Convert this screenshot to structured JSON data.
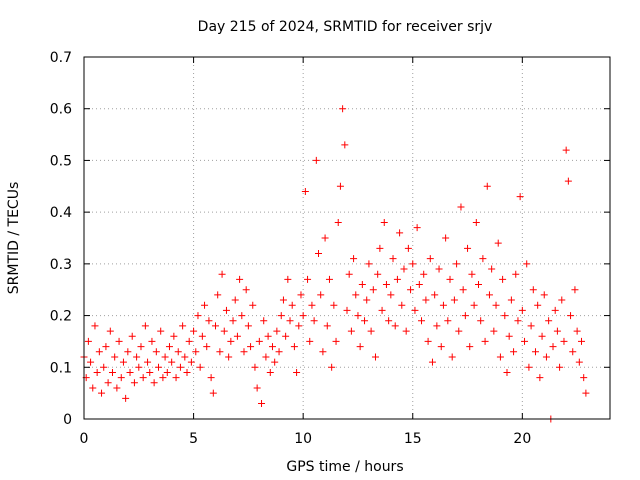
{
  "chart_data": {
    "type": "scatter",
    "title": "Day 215 of 2024, SRMTID for receiver srjv",
    "xlabel": "GPS time / hours",
    "ylabel": "SRMTID / TECUs",
    "xlim": [
      0,
      24
    ],
    "ylim": [
      0,
      0.7
    ],
    "x_ticks": [
      0,
      5,
      10,
      15,
      20
    ],
    "x_tick_labels": [
      "0",
      "5",
      "10",
      "15",
      "20"
    ],
    "y_ticks": [
      0,
      0.1,
      0.2,
      0.3,
      0.4,
      0.5,
      0.6,
      0.7
    ],
    "y_tick_labels": [
      "0",
      "0.1",
      "0.2",
      "0.3",
      "0.4",
      "0.5",
      "0.6",
      "0.7"
    ],
    "grid": true,
    "marker": "plus",
    "series": [
      {
        "name": "srjv",
        "color": "#ff0000",
        "points": [
          [
            0.0,
            0.12
          ],
          [
            0.1,
            0.08
          ],
          [
            0.2,
            0.15
          ],
          [
            0.3,
            0.11
          ],
          [
            0.4,
            0.06
          ],
          [
            0.5,
            0.18
          ],
          [
            0.6,
            0.09
          ],
          [
            0.7,
            0.13
          ],
          [
            0.8,
            0.05
          ],
          [
            0.9,
            0.1
          ],
          [
            1.0,
            0.14
          ],
          [
            1.1,
            0.07
          ],
          [
            1.2,
            0.17
          ],
          [
            1.3,
            0.09
          ],
          [
            1.4,
            0.12
          ],
          [
            1.5,
            0.06
          ],
          [
            1.6,
            0.15
          ],
          [
            1.7,
            0.08
          ],
          [
            1.8,
            0.11
          ],
          [
            1.9,
            0.04
          ],
          [
            2.0,
            0.13
          ],
          [
            2.1,
            0.09
          ],
          [
            2.2,
            0.16
          ],
          [
            2.3,
            0.07
          ],
          [
            2.4,
            0.12
          ],
          [
            2.5,
            0.1
          ],
          [
            2.6,
            0.14
          ],
          [
            2.7,
            0.08
          ],
          [
            2.8,
            0.18
          ],
          [
            2.9,
            0.11
          ],
          [
            3.0,
            0.09
          ],
          [
            3.1,
            0.15
          ],
          [
            3.2,
            0.07
          ],
          [
            3.3,
            0.13
          ],
          [
            3.4,
            0.1
          ],
          [
            3.5,
            0.17
          ],
          [
            3.6,
            0.08
          ],
          [
            3.7,
            0.12
          ],
          [
            3.8,
            0.09
          ],
          [
            3.9,
            0.14
          ],
          [
            4.0,
            0.11
          ],
          [
            4.1,
            0.16
          ],
          [
            4.2,
            0.08
          ],
          [
            4.3,
            0.13
          ],
          [
            4.4,
            0.1
          ],
          [
            4.5,
            0.18
          ],
          [
            4.6,
            0.12
          ],
          [
            4.7,
            0.09
          ],
          [
            4.8,
            0.15
          ],
          [
            4.9,
            0.11
          ],
          [
            5.0,
            0.17
          ],
          [
            5.1,
            0.13
          ],
          [
            5.2,
            0.2
          ],
          [
            5.3,
            0.1
          ],
          [
            5.4,
            0.16
          ],
          [
            5.5,
            0.22
          ],
          [
            5.6,
            0.14
          ],
          [
            5.7,
            0.19
          ],
          [
            5.8,
            0.08
          ],
          [
            5.9,
            0.05
          ],
          [
            6.0,
            0.18
          ],
          [
            6.1,
            0.24
          ],
          [
            6.2,
            0.13
          ],
          [
            6.3,
            0.28
          ],
          [
            6.4,
            0.17
          ],
          [
            6.5,
            0.21
          ],
          [
            6.6,
            0.12
          ],
          [
            6.7,
            0.15
          ],
          [
            6.8,
            0.19
          ],
          [
            6.9,
            0.23
          ],
          [
            7.0,
            0.16
          ],
          [
            7.1,
            0.27
          ],
          [
            7.2,
            0.2
          ],
          [
            7.3,
            0.13
          ],
          [
            7.4,
            0.25
          ],
          [
            7.5,
            0.18
          ],
          [
            7.6,
            0.14
          ],
          [
            7.7,
            0.22
          ],
          [
            7.8,
            0.1
          ],
          [
            7.9,
            0.06
          ],
          [
            8.0,
            0.15
          ],
          [
            8.1,
            0.03
          ],
          [
            8.2,
            0.19
          ],
          [
            8.3,
            0.12
          ],
          [
            8.4,
            0.16
          ],
          [
            8.5,
            0.09
          ],
          [
            8.6,
            0.14
          ],
          [
            8.7,
            0.11
          ],
          [
            8.8,
            0.17
          ],
          [
            8.9,
            0.13
          ],
          [
            9.0,
            0.2
          ],
          [
            9.1,
            0.23
          ],
          [
            9.2,
            0.16
          ],
          [
            9.3,
            0.27
          ],
          [
            9.4,
            0.19
          ],
          [
            9.5,
            0.22
          ],
          [
            9.6,
            0.14
          ],
          [
            9.7,
            0.09
          ],
          [
            9.8,
            0.18
          ],
          [
            9.9,
            0.24
          ],
          [
            10.0,
            0.2
          ],
          [
            10.1,
            0.44
          ],
          [
            10.2,
            0.27
          ],
          [
            10.3,
            0.15
          ],
          [
            10.4,
            0.22
          ],
          [
            10.5,
            0.19
          ],
          [
            10.6,
            0.5
          ],
          [
            10.7,
            0.32
          ],
          [
            10.8,
            0.24
          ],
          [
            10.9,
            0.13
          ],
          [
            11.0,
            0.35
          ],
          [
            11.1,
            0.18
          ],
          [
            11.2,
            0.27
          ],
          [
            11.3,
            0.1
          ],
          [
            11.4,
            0.22
          ],
          [
            11.5,
            0.15
          ],
          [
            11.6,
            0.38
          ],
          [
            11.7,
            0.45
          ],
          [
            11.8,
            0.6
          ],
          [
            11.9,
            0.53
          ],
          [
            12.0,
            0.21
          ],
          [
            12.1,
            0.28
          ],
          [
            12.2,
            0.17
          ],
          [
            12.3,
            0.31
          ],
          [
            12.4,
            0.24
          ],
          [
            12.5,
            0.2
          ],
          [
            12.6,
            0.14
          ],
          [
            12.7,
            0.26
          ],
          [
            12.8,
            0.19
          ],
          [
            12.9,
            0.23
          ],
          [
            13.0,
            0.3
          ],
          [
            13.1,
            0.17
          ],
          [
            13.2,
            0.25
          ],
          [
            13.3,
            0.12
          ],
          [
            13.4,
            0.28
          ],
          [
            13.5,
            0.33
          ],
          [
            13.6,
            0.21
          ],
          [
            13.7,
            0.38
          ],
          [
            13.8,
            0.26
          ],
          [
            13.9,
            0.19
          ],
          [
            14.0,
            0.24
          ],
          [
            14.1,
            0.31
          ],
          [
            14.2,
            0.18
          ],
          [
            14.3,
            0.27
          ],
          [
            14.4,
            0.36
          ],
          [
            14.5,
            0.22
          ],
          [
            14.6,
            0.29
          ],
          [
            14.7,
            0.17
          ],
          [
            14.8,
            0.33
          ],
          [
            14.9,
            0.25
          ],
          [
            15.0,
            0.3
          ],
          [
            15.1,
            0.21
          ],
          [
            15.2,
            0.37
          ],
          [
            15.3,
            0.26
          ],
          [
            15.4,
            0.19
          ],
          [
            15.5,
            0.28
          ],
          [
            15.6,
            0.23
          ],
          [
            15.7,
            0.15
          ],
          [
            15.8,
            0.31
          ],
          [
            15.9,
            0.11
          ],
          [
            16.0,
            0.24
          ],
          [
            16.1,
            0.18
          ],
          [
            16.2,
            0.29
          ],
          [
            16.3,
            0.14
          ],
          [
            16.4,
            0.22
          ],
          [
            16.5,
            0.35
          ],
          [
            16.6,
            0.19
          ],
          [
            16.7,
            0.27
          ],
          [
            16.8,
            0.12
          ],
          [
            16.9,
            0.23
          ],
          [
            17.0,
            0.3
          ],
          [
            17.1,
            0.17
          ],
          [
            17.2,
            0.41
          ],
          [
            17.3,
            0.25
          ],
          [
            17.4,
            0.2
          ],
          [
            17.5,
            0.33
          ],
          [
            17.6,
            0.14
          ],
          [
            17.7,
            0.28
          ],
          [
            17.8,
            0.22
          ],
          [
            17.9,
            0.38
          ],
          [
            18.0,
            0.26
          ],
          [
            18.1,
            0.19
          ],
          [
            18.2,
            0.31
          ],
          [
            18.3,
            0.15
          ],
          [
            18.4,
            0.45
          ],
          [
            18.5,
            0.24
          ],
          [
            18.6,
            0.29
          ],
          [
            18.7,
            0.17
          ],
          [
            18.8,
            0.22
          ],
          [
            18.9,
            0.34
          ],
          [
            19.0,
            0.12
          ],
          [
            19.1,
            0.27
          ],
          [
            19.2,
            0.2
          ],
          [
            19.3,
            0.09
          ],
          [
            19.4,
            0.16
          ],
          [
            19.5,
            0.23
          ],
          [
            19.6,
            0.13
          ],
          [
            19.7,
            0.28
          ],
          [
            19.8,
            0.19
          ],
          [
            19.9,
            0.43
          ],
          [
            20.0,
            0.21
          ],
          [
            20.1,
            0.15
          ],
          [
            20.2,
            0.3
          ],
          [
            20.3,
            0.1
          ],
          [
            20.4,
            0.18
          ],
          [
            20.5,
            0.25
          ],
          [
            20.6,
            0.13
          ],
          [
            20.7,
            0.22
          ],
          [
            20.8,
            0.08
          ],
          [
            20.9,
            0.16
          ],
          [
            21.0,
            0.24
          ],
          [
            21.1,
            0.12
          ],
          [
            21.2,
            0.19
          ],
          [
            21.3,
            0.0
          ],
          [
            21.4,
            0.14
          ],
          [
            21.5,
            0.21
          ],
          [
            21.6,
            0.17
          ],
          [
            21.7,
            0.1
          ],
          [
            21.8,
            0.23
          ],
          [
            21.9,
            0.15
          ],
          [
            22.0,
            0.52
          ],
          [
            22.1,
            0.46
          ],
          [
            22.2,
            0.2
          ],
          [
            22.3,
            0.13
          ],
          [
            22.4,
            0.25
          ],
          [
            22.5,
            0.17
          ],
          [
            22.6,
            0.11
          ],
          [
            22.7,
            0.15
          ],
          [
            22.8,
            0.08
          ],
          [
            22.9,
            0.05
          ]
        ]
      }
    ]
  }
}
